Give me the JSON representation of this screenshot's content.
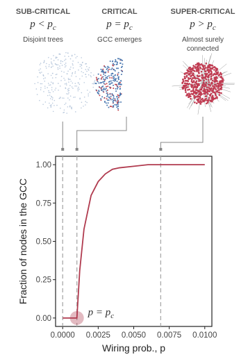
{
  "panels": [
    {
      "title": "SUB-CRITICAL",
      "formula": {
        "base": "p < p",
        "sub": "c"
      },
      "description": [
        "Disjoint trees"
      ]
    },
    {
      "title": "CRITICAL",
      "formula": {
        "base": "p = p",
        "sub": "c"
      },
      "description": [
        "GCC emerges"
      ]
    },
    {
      "title": "SUPER-CRITICAL",
      "formula": {
        "base": "p > p",
        "sub": "c"
      },
      "description": [
        "Almost surely",
        "connected"
      ]
    }
  ],
  "chart_data": {
    "type": "line",
    "x_label": "Wiring prob., p",
    "y_label": "Fraction of nodes in the GCC",
    "x": [
      0,
      0.0005,
      0.001,
      0.0012,
      0.0015,
      0.002,
      0.0025,
      0.003,
      0.0035,
      0.004,
      0.005,
      0.006,
      0.007,
      0.008,
      0.009,
      0.01
    ],
    "values": [
      0,
      0,
      0,
      0.31,
      0.58,
      0.8,
      0.89,
      0.94,
      0.97,
      0.98,
      0.99,
      1.0,
      1.0,
      1.0,
      1.0,
      1.0
    ],
    "color": "#b03a4e",
    "xlim": [
      -0.0005,
      0.0105
    ],
    "ylim": [
      -0.055,
      1.055
    ],
    "xticks": [
      {
        "value": 0,
        "label": "0.0000"
      },
      {
        "value": 0.0025,
        "label": "0.0025"
      },
      {
        "value": 0.005,
        "label": "0.0050"
      },
      {
        "value": 0.0075,
        "label": "0.0075"
      },
      {
        "value": 0.01,
        "label": "0.0100"
      }
    ],
    "yticks": [
      {
        "value": 0,
        "label": "0.00"
      },
      {
        "value": 0.25,
        "label": "0.25"
      },
      {
        "value": 0.5,
        "label": "0.50"
      },
      {
        "value": 0.75,
        "label": "0.75"
      },
      {
        "value": 1,
        "label": "1.00"
      }
    ],
    "reference_lines": [
      0,
      0.001,
      0.0069
    ],
    "annotation": {
      "x": 0.001,
      "y": 0,
      "base": "p = p",
      "sub": "c"
    }
  }
}
